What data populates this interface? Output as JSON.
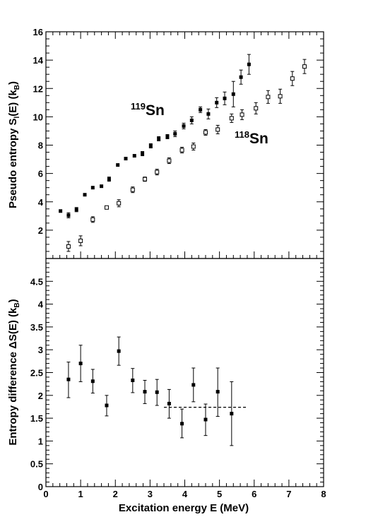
{
  "chart_data": [
    {
      "type": "scatter",
      "ylabel_main": "Pseudo entropy S",
      "ylabel_sub": "l",
      "ylabel_tail": "(E)  (k",
      "ylabel_sub2": "B",
      "ylabel_close": ")",
      "xlim": [
        0,
        8
      ],
      "ylim": [
        0,
        16
      ],
      "yticks": [
        "2",
        "4",
        "6",
        "8",
        "10",
        "12",
        "14",
        "16"
      ],
      "annotations": [
        {
          "mass": "119",
          "symbol": "Sn"
        },
        {
          "mass": "118",
          "symbol": "Sn"
        }
      ],
      "series": [
        {
          "marker": "filled-square",
          "points": [
            {
              "x": 0.42,
              "y": 3.35,
              "err": 0.0
            },
            {
              "x": 0.65,
              "y": 3.05,
              "err": 0.18
            },
            {
              "x": 0.88,
              "y": 3.45,
              "err": 0.15
            },
            {
              "x": 1.12,
              "y": 4.5,
              "err": 0.0
            },
            {
              "x": 1.35,
              "y": 5.0,
              "err": 0.0
            },
            {
              "x": 1.6,
              "y": 5.1,
              "err": 0.0
            },
            {
              "x": 1.82,
              "y": 5.6,
              "err": 0.15
            },
            {
              "x": 2.07,
              "y": 6.6,
              "err": 0.0
            },
            {
              "x": 2.3,
              "y": 7.05,
              "err": 0.0
            },
            {
              "x": 2.55,
              "y": 7.25,
              "err": 0.0
            },
            {
              "x": 2.78,
              "y": 7.4,
              "err": 0.15
            },
            {
              "x": 3.02,
              "y": 7.95,
              "err": 0.15
            },
            {
              "x": 3.25,
              "y": 8.45,
              "err": 0.15
            },
            {
              "x": 3.5,
              "y": 8.6,
              "err": 0.15
            },
            {
              "x": 3.72,
              "y": 8.8,
              "err": 0.2
            },
            {
              "x": 3.97,
              "y": 9.35,
              "err": 0.2
            },
            {
              "x": 4.2,
              "y": 9.75,
              "err": 0.25
            },
            {
              "x": 4.45,
              "y": 10.5,
              "err": 0.2
            },
            {
              "x": 4.68,
              "y": 10.2,
              "err": 0.35
            },
            {
              "x": 4.92,
              "y": 11.0,
              "err": 0.35
            },
            {
              "x": 5.15,
              "y": 11.3,
              "err": 0.45
            },
            {
              "x": 5.4,
              "y": 11.6,
              "err": 0.9
            },
            {
              "x": 5.62,
              "y": 12.8,
              "err": 0.5
            },
            {
              "x": 5.85,
              "y": 13.7,
              "err": 0.7
            }
          ]
        },
        {
          "marker": "open-square",
          "points": [
            {
              "x": 0.65,
              "y": 0.85,
              "err": 0.35
            },
            {
              "x": 1.0,
              "y": 1.25,
              "err": 0.35
            },
            {
              "x": 1.35,
              "y": 2.75,
              "err": 0.2
            },
            {
              "x": 1.75,
              "y": 3.6,
              "err": 0.1
            },
            {
              "x": 2.1,
              "y": 3.9,
              "err": 0.25
            },
            {
              "x": 2.5,
              "y": 4.85,
              "err": 0.2
            },
            {
              "x": 2.85,
              "y": 5.6,
              "err": 0.15
            },
            {
              "x": 3.2,
              "y": 6.1,
              "err": 0.2
            },
            {
              "x": 3.55,
              "y": 6.9,
              "err": 0.2
            },
            {
              "x": 3.92,
              "y": 7.65,
              "err": 0.2
            },
            {
              "x": 4.25,
              "y": 7.9,
              "err": 0.25
            },
            {
              "x": 4.6,
              "y": 8.9,
              "err": 0.2
            },
            {
              "x": 4.95,
              "y": 9.1,
              "err": 0.3
            },
            {
              "x": 5.35,
              "y": 9.9,
              "err": 0.3
            },
            {
              "x": 5.65,
              "y": 10.15,
              "err": 0.35
            },
            {
              "x": 6.05,
              "y": 10.6,
              "err": 0.4
            },
            {
              "x": 6.4,
              "y": 11.4,
              "err": 0.45
            },
            {
              "x": 6.75,
              "y": 11.45,
              "err": 0.5
            },
            {
              "x": 7.1,
              "y": 12.7,
              "err": 0.5
            },
            {
              "x": 7.45,
              "y": 13.55,
              "err": 0.5
            }
          ]
        }
      ]
    },
    {
      "type": "scatter",
      "ylabel_main": "Entropy difference ",
      "ylabel_delta": "ΔS(E)  (k",
      "ylabel_sub": "B",
      "ylabel_close": ")",
      "xlabel": "Excitation energy E (MeV)",
      "xlim": [
        0,
        8
      ],
      "ylim": [
        0,
        5
      ],
      "xticks": [
        "0",
        "1",
        "2",
        "3",
        "4",
        "5",
        "6",
        "7",
        "8"
      ],
      "yticks": [
        "0",
        "0.5",
        "1",
        "1.5",
        "2",
        "2.5",
        "3",
        "3.5",
        "4",
        "4.5"
      ],
      "series": [
        {
          "marker": "filled-square",
          "points": [
            {
              "x": 0.65,
              "y": 2.35,
              "lo": 1.95,
              "hi": 2.73
            },
            {
              "x": 1.0,
              "y": 2.7,
              "lo": 2.3,
              "hi": 3.1
            },
            {
              "x": 1.35,
              "y": 2.31,
              "lo": 2.05,
              "hi": 2.57
            },
            {
              "x": 1.75,
              "y": 1.78,
              "lo": 1.55,
              "hi": 2.0
            },
            {
              "x": 2.1,
              "y": 2.97,
              "lo": 2.66,
              "hi": 3.28
            },
            {
              "x": 2.5,
              "y": 2.33,
              "lo": 2.06,
              "hi": 2.59
            },
            {
              "x": 2.85,
              "y": 2.08,
              "lo": 1.82,
              "hi": 2.33
            },
            {
              "x": 3.2,
              "y": 2.07,
              "lo": 1.78,
              "hi": 2.35
            },
            {
              "x": 3.55,
              "y": 1.82,
              "lo": 1.5,
              "hi": 2.13
            },
            {
              "x": 3.92,
              "y": 1.38,
              "lo": 1.07,
              "hi": 1.7
            },
            {
              "x": 4.25,
              "y": 2.23,
              "lo": 1.86,
              "hi": 2.6
            },
            {
              "x": 4.6,
              "y": 1.47,
              "lo": 1.12,
              "hi": 1.81
            },
            {
              "x": 4.95,
              "y": 2.08,
              "lo": 1.54,
              "hi": 2.6
            },
            {
              "x": 5.35,
              "y": 1.6,
              "lo": 0.9,
              "hi": 2.3
            }
          ]
        }
      ],
      "fit_line": {
        "x_start": 3.4,
        "x_end": 5.8,
        "y": 1.74
      }
    }
  ]
}
